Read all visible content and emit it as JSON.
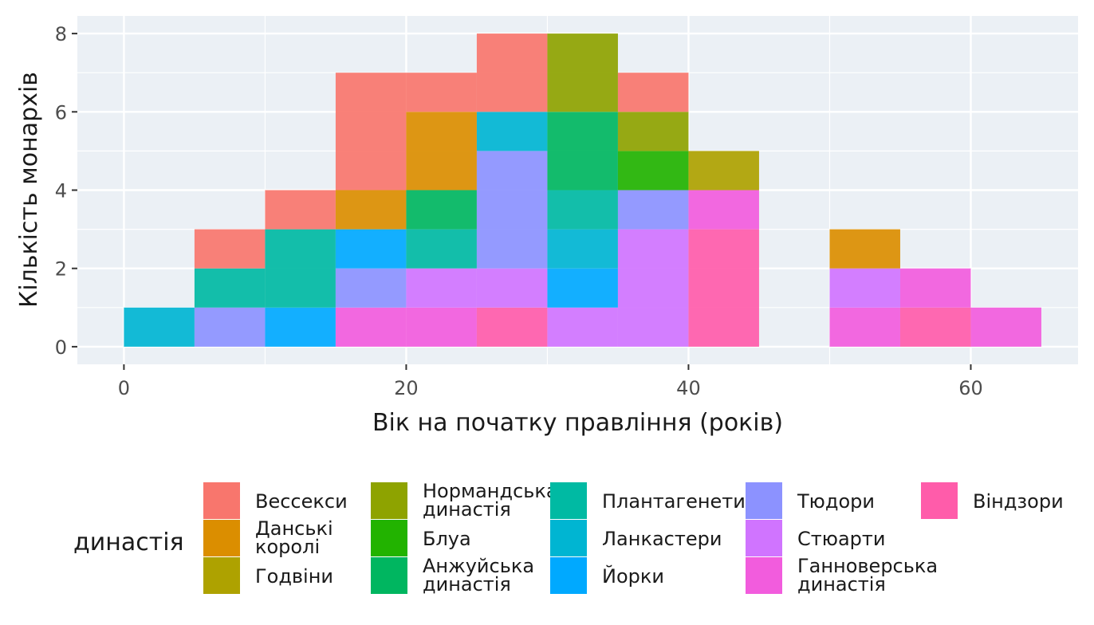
{
  "chart_data": {
    "type": "bar",
    "stacked": true,
    "bin_width": 5,
    "x_axis_label": "Вік на початку правління (років)",
    "y_axis_label": "Кількість монархів",
    "x_ticks": [
      0,
      20,
      40,
      60
    ],
    "y_ticks": [
      0,
      2,
      4,
      6,
      8
    ],
    "xlim": [
      -3.3,
      67.6
    ],
    "ylim": [
      -0.45,
      8.45
    ],
    "grid": true,
    "legend_title": "династія",
    "legend_position": "bottom",
    "bins": [
      {
        "x0": 0,
        "x1": 5,
        "segments": [
          {
            "series": "Ланкастери",
            "count": 1
          }
        ]
      },
      {
        "x0": 5,
        "x1": 10,
        "segments": [
          {
            "series": "Тюдори",
            "count": 1
          },
          {
            "series": "Плантагенети",
            "count": 1
          },
          {
            "series": "Вессекси",
            "count": 1
          }
        ]
      },
      {
        "x0": 10,
        "x1": 15,
        "segments": [
          {
            "series": "Йорки",
            "count": 1
          },
          {
            "series": "Плантагенети",
            "count": 2
          },
          {
            "series": "Вессекси",
            "count": 1
          }
        ]
      },
      {
        "x0": 15,
        "x1": 20,
        "segments": [
          {
            "series": "Ганноверська династія",
            "count": 1
          },
          {
            "series": "Тюдори",
            "count": 1
          },
          {
            "series": "Йорки",
            "count": 1
          },
          {
            "series": "Данські королі",
            "count": 1
          },
          {
            "series": "Вессекси",
            "count": 3
          }
        ]
      },
      {
        "x0": 20,
        "x1": 25,
        "segments": [
          {
            "series": "Ганноверська династія",
            "count": 1
          },
          {
            "series": "Стюарти",
            "count": 1
          },
          {
            "series": "Плантагенети",
            "count": 1
          },
          {
            "series": "Анжуйська династія",
            "count": 1
          },
          {
            "series": "Данські королі",
            "count": 2
          },
          {
            "series": "Вессекси",
            "count": 1
          }
        ]
      },
      {
        "x0": 25,
        "x1": 30,
        "segments": [
          {
            "series": "Віндзори",
            "count": 1
          },
          {
            "series": "Стюарти",
            "count": 1
          },
          {
            "series": "Тюдори",
            "count": 3
          },
          {
            "series": "Ланкастери",
            "count": 1
          },
          {
            "series": "Вессекси",
            "count": 2
          }
        ]
      },
      {
        "x0": 30,
        "x1": 35,
        "segments": [
          {
            "series": "Стюарти",
            "count": 1
          },
          {
            "series": "Йорки",
            "count": 1
          },
          {
            "series": "Ланкастери",
            "count": 1
          },
          {
            "series": "Плантагенети",
            "count": 1
          },
          {
            "series": "Анжуйська династія",
            "count": 2
          },
          {
            "series": "Нормандська династія",
            "count": 2
          }
        ]
      },
      {
        "x0": 35,
        "x1": 40,
        "segments": [
          {
            "series": "Стюарти",
            "count": 3
          },
          {
            "series": "Тюдори",
            "count": 1
          },
          {
            "series": "Блуа",
            "count": 1
          },
          {
            "series": "Нормандська династія",
            "count": 1
          },
          {
            "series": "Вессекси",
            "count": 1
          }
        ]
      },
      {
        "x0": 40,
        "x1": 45,
        "segments": [
          {
            "series": "Віндзори",
            "count": 3
          },
          {
            "series": "Ганноверська династія",
            "count": 1
          },
          {
            "series": "Годвіни",
            "count": 1
          }
        ]
      },
      {
        "x0": 45,
        "x1": 50,
        "segments": []
      },
      {
        "x0": 50,
        "x1": 55,
        "segments": [
          {
            "series": "Ганноверська династія",
            "count": 1
          },
          {
            "series": "Стюарти",
            "count": 1
          },
          {
            "series": "Данські королі",
            "count": 1
          }
        ]
      },
      {
        "x0": 55,
        "x1": 60,
        "segments": [
          {
            "series": "Віндзори",
            "count": 1
          },
          {
            "series": "Ганноверська династія",
            "count": 1
          }
        ]
      },
      {
        "x0": 60,
        "x1": 65,
        "segments": [
          {
            "series": "Ганноверська династія",
            "count": 1
          }
        ]
      }
    ],
    "series": [
      {
        "name": "Вессекси",
        "color": "#F8766D"
      },
      {
        "name": "Данські королі",
        "color": "#DB8E00"
      },
      {
        "name": "Годвіни",
        "color": "#AEA200"
      },
      {
        "name": "Нормандська династія",
        "color": "#8EA300"
      },
      {
        "name": "Блуа",
        "color": "#22B300"
      },
      {
        "name": "Анжуйська династія",
        "color": "#00B660"
      },
      {
        "name": "Плантагенети",
        "color": "#00BAA3"
      },
      {
        "name": "Ланкастери",
        "color": "#00B5D2"
      },
      {
        "name": "Йорки",
        "color": "#00A9FF"
      },
      {
        "name": "Тюдори",
        "color": "#8C92FF"
      },
      {
        "name": "Стюарти",
        "color": "#D074FF"
      },
      {
        "name": "Ганноверська династія",
        "color": "#F25CDD"
      },
      {
        "name": "Віндзори",
        "color": "#FF5CAA"
      }
    ],
    "legend_columns": [
      [
        [
          "Вессекси"
        ],
        [
          "Данські",
          "королі"
        ],
        [
          "Годвіни"
        ]
      ],
      [
        [
          "Нормандська",
          "династія"
        ],
        [
          "Блуа"
        ],
        [
          "Анжуйська",
          "династія"
        ]
      ],
      [
        [
          "Плантагенети"
        ],
        [
          "Ланкастери"
        ],
        [
          "Йорки"
        ]
      ],
      [
        [
          "Тюдори"
        ],
        [
          "Стюарти"
        ],
        [
          "Ганноверська",
          "династія"
        ]
      ],
      [
        [
          "Віндзори"
        ]
      ]
    ]
  },
  "style": {
    "panel_background": "#EBF0F5",
    "grid_color": "#FFFFFF",
    "tick_color": "#333333"
  }
}
